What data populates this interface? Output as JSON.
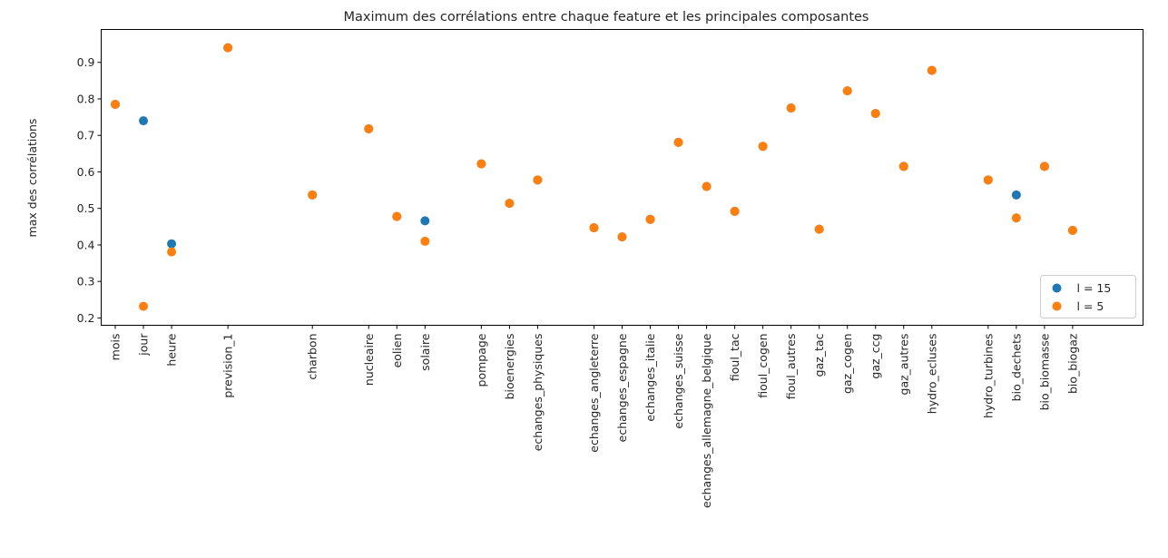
{
  "chart_data": {
    "type": "scatter",
    "title": "Maximum des corrélations entre chaque feature et les principales composantes",
    "xlabel": "",
    "ylabel": "max des corrélations",
    "ylim": [
      0.18,
      0.99
    ],
    "yticks": [
      0.2,
      0.3,
      0.4,
      0.5,
      0.6,
      0.7,
      0.8,
      0.9
    ],
    "ytick_labels": [
      "0.2",
      "0.3",
      "0.4",
      "0.5",
      "0.6",
      "0.7",
      "0.8",
      "0.9"
    ],
    "xlim": [
      -0.5,
      36.5
    ],
    "legend_position": "bottom-right",
    "grid": false,
    "categories": [
      {
        "label": "mois",
        "x": 0
      },
      {
        "label": "jour",
        "x": 1
      },
      {
        "label": "heure",
        "x": 2
      },
      {
        "label": "prevision_1",
        "x": 4
      },
      {
        "label": "charbon",
        "x": 7
      },
      {
        "label": "nucleaire",
        "x": 9
      },
      {
        "label": "eolien",
        "x": 10
      },
      {
        "label": "solaire",
        "x": 11
      },
      {
        "label": "pompage",
        "x": 13
      },
      {
        "label": "bioenergies",
        "x": 14
      },
      {
        "label": "echanges_physiques",
        "x": 15
      },
      {
        "label": "echanges_angleterre",
        "x": 17
      },
      {
        "label": "echanges_espagne",
        "x": 18
      },
      {
        "label": "echanges_italie",
        "x": 19
      },
      {
        "label": "echanges_suisse",
        "x": 20
      },
      {
        "label": "echanges_allemagne_belgique",
        "x": 21
      },
      {
        "label": "fioul_tac",
        "x": 22
      },
      {
        "label": "fioul_cogen",
        "x": 23
      },
      {
        "label": "fioul_autres",
        "x": 24
      },
      {
        "label": "gaz_tac",
        "x": 25
      },
      {
        "label": "gaz_cogen",
        "x": 26
      },
      {
        "label": "gaz_ccg",
        "x": 27
      },
      {
        "label": "gaz_autres",
        "x": 28
      },
      {
        "label": "hydro_ecluses",
        "x": 29
      },
      {
        "label": "hydro_turbines",
        "x": 31
      },
      {
        "label": "bio_dechets",
        "x": 32
      },
      {
        "label": "bio_biomasse",
        "x": 33
      },
      {
        "label": "bio_biogaz",
        "x": 34
      }
    ],
    "series": [
      {
        "name": "l = 15",
        "color": "#1f77b4",
        "values": [
          0.785,
          0.74,
          0.403,
          0.94,
          0.537,
          0.718,
          0.478,
          0.466,
          0.622,
          0.514,
          0.578,
          0.447,
          0.422,
          0.47,
          0.681,
          0.56,
          0.492,
          0.67,
          0.775,
          0.443,
          0.822,
          0.76,
          0.615,
          0.878,
          0.578,
          0.537,
          0.615,
          0.44
        ]
      },
      {
        "name": "l = 5",
        "color": "#ff7f0e",
        "values": [
          0.785,
          0.232,
          0.381,
          0.94,
          0.537,
          0.718,
          0.478,
          0.41,
          0.622,
          0.514,
          0.578,
          0.447,
          0.422,
          0.47,
          0.681,
          0.56,
          0.492,
          0.67,
          0.775,
          0.443,
          0.822,
          0.76,
          0.615,
          0.878,
          0.578,
          0.474,
          0.615,
          0.44
        ]
      }
    ]
  }
}
